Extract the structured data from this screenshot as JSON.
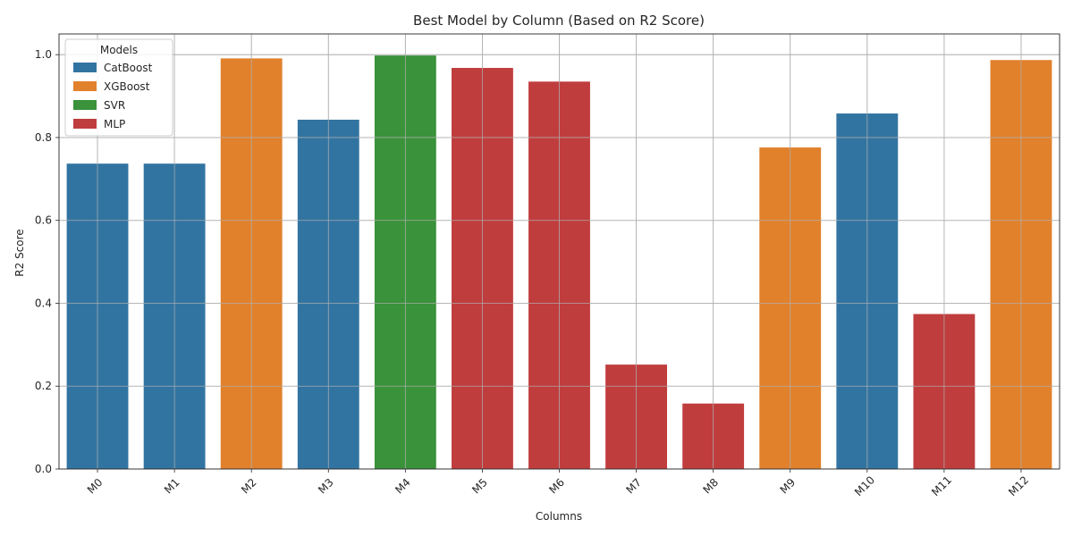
{
  "chart_data": {
    "type": "bar",
    "title": "Best Model by Column (Based on R2 Score)",
    "xlabel": "Columns",
    "ylabel": "R2 Score",
    "ylim": [
      0,
      1.05
    ],
    "yticks": [
      "0.0",
      "0.2",
      "0.4",
      "0.6",
      "0.8",
      "1.0"
    ],
    "grid": true,
    "categories": [
      "M0",
      "M1",
      "M2",
      "M3",
      "M4",
      "M5",
      "M6",
      "M7",
      "M8",
      "M9",
      "M10",
      "M11",
      "M12"
    ],
    "values": [
      0.737,
      0.737,
      0.991,
      0.843,
      0.998,
      0.968,
      0.935,
      0.252,
      0.158,
      0.776,
      0.858,
      0.374,
      0.987
    ],
    "models": [
      "CatBoost",
      "CatBoost",
      "XGBoost",
      "CatBoost",
      "SVR",
      "MLP",
      "MLP",
      "MLP",
      "MLP",
      "XGBoost",
      "CatBoost",
      "MLP",
      "XGBoost"
    ],
    "legend": {
      "title": "Models",
      "placement": "top-left",
      "entries": [
        {
          "name": "CatBoost",
          "color": "#3274a1"
        },
        {
          "name": "XGBoost",
          "color": "#e1812c"
        },
        {
          "name": "SVR",
          "color": "#3a923a"
        },
        {
          "name": "MLP",
          "color": "#c03d3e"
        }
      ]
    }
  }
}
